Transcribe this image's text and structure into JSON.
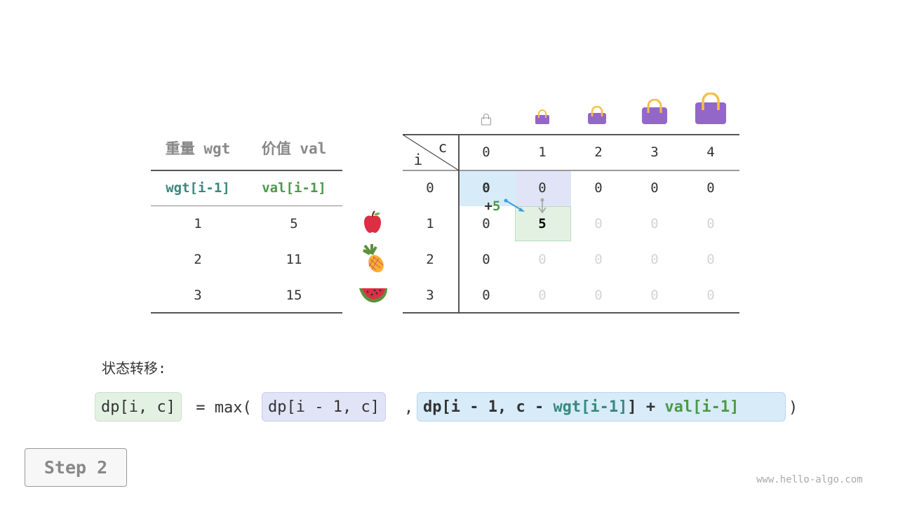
{
  "item_table": {
    "headers": [
      "重量 wgt",
      "价值 val"
    ],
    "subheaders": [
      "wgt[i-1]",
      "val[i-1]"
    ],
    "rows": [
      {
        "wgt": "1",
        "val": "5",
        "item": "apple-icon"
      },
      {
        "wgt": "2",
        "val": "11",
        "item": "pineapple-icon"
      },
      {
        "wgt": "3",
        "val": "15",
        "item": "watermelon-icon"
      }
    ]
  },
  "dp_table": {
    "row_label": "i",
    "col_label": "c",
    "cols": [
      "0",
      "1",
      "2",
      "3",
      "4"
    ],
    "row_indices": [
      "0",
      "1",
      "2",
      "3"
    ],
    "cells": [
      [
        "0",
        "0",
        "0",
        "0",
        "0"
      ],
      [
        "0",
        "5",
        "0",
        "0",
        "0"
      ],
      [
        "0",
        "0",
        "0",
        "0",
        "0"
      ],
      [
        "0",
        "0",
        "0",
        "0",
        "0"
      ]
    ],
    "arrow_label_plus": "+",
    "arrow_label_value": "5"
  },
  "colors": {
    "wgt": "#37897d",
    "val": "#4a9a48",
    "blue_box": "#d8ebf8",
    "purple_box": "#e1e4f7",
    "green_box": "#e3f1e3",
    "bag": "#9367c8",
    "handle": "#f5c04a"
  },
  "formula": {
    "title": "状态转移:",
    "lhs": "dp[i, c]",
    "eq": " = max(",
    "opt1": "dp[i - 1, c]",
    "comma": ",",
    "opt2_a": "dp[i - 1, c - ",
    "opt2_wgt": "wgt[i-1]",
    "opt2_b": "] + ",
    "opt2_val": "val[i-1]",
    "close": ")"
  },
  "step_label": "Step 2",
  "watermark": "www.hello-algo.com"
}
